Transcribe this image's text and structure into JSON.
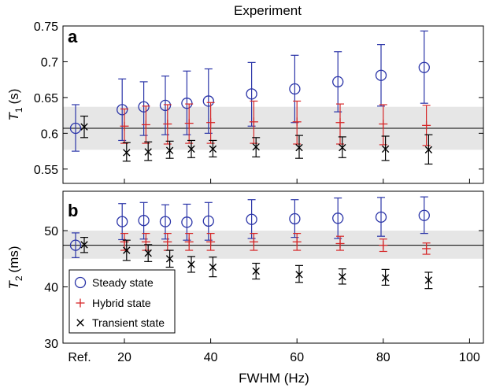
{
  "figure_title": "Experiment",
  "x_axis": {
    "label": "FWHM (Hz)",
    "range": [
      10,
      100
    ],
    "ticks": [
      20,
      40,
      60,
      80,
      100
    ],
    "ref_label": "Ref."
  },
  "legend": {
    "placement": "bottom-left of panel b",
    "entries": [
      {
        "name": "Steady state",
        "marker": "circle",
        "color": "#2b35a8"
      },
      {
        "name": "Hybrid state",
        "marker": "plus",
        "color": "#d62728"
      },
      {
        "name": "Transient state",
        "marker": "x",
        "color": "#000000"
      }
    ]
  },
  "colors": {
    "steady": "#2b35a8",
    "hybrid": "#d62728",
    "transient": "#000000",
    "band": "#e6e6e6"
  },
  "chart_data": [
    {
      "type": "scatter",
      "panel_label": "a",
      "ylabel_symbol": "T",
      "ylabel_sub": "1",
      "ylabel_unit": "(s)",
      "ylim": [
        0.53,
        0.75
      ],
      "yticks": [
        "0.55",
        "0.6",
        "0.65",
        "0.7",
        "0.75"
      ],
      "reference_line": 0.607,
      "band": [
        0.577,
        0.637
      ],
      "ref_points": [
        {
          "series": "Steady state",
          "value": 0.607,
          "low": 0.575,
          "high": 0.64
        },
        {
          "series": "Transient state",
          "value": 0.609,
          "low": 0.594,
          "high": 0.624
        }
      ],
      "x": [
        20,
        25,
        30,
        35,
        40,
        50,
        60,
        70,
        80,
        90
      ],
      "series": [
        {
          "name": "Steady state",
          "x_offset": -1,
          "values": [
            0.633,
            0.637,
            0.639,
            0.642,
            0.645,
            0.655,
            0.662,
            0.672,
            0.681,
            0.692
          ],
          "low": [
            0.59,
            0.597,
            0.598,
            0.598,
            0.6,
            0.61,
            0.615,
            0.63,
            0.638,
            0.642
          ],
          "high": [
            0.676,
            0.672,
            0.68,
            0.687,
            0.69,
            0.699,
            0.709,
            0.714,
            0.724,
            0.743
          ]
        },
        {
          "name": "Hybrid state",
          "x_offset": 0,
          "values": [
            0.61,
            0.612,
            0.613,
            0.614,
            0.615,
            0.616,
            0.616,
            0.615,
            0.613,
            0.611
          ],
          "low": [
            0.586,
            0.586,
            0.585,
            0.586,
            0.586,
            0.586,
            0.585,
            0.585,
            0.584,
            0.583
          ],
          "high": [
            0.634,
            0.638,
            0.64,
            0.641,
            0.643,
            0.645,
            0.645,
            0.641,
            0.64,
            0.639
          ]
        },
        {
          "name": "Transient state",
          "x_offset": 1,
          "values": [
            0.573,
            0.574,
            0.576,
            0.578,
            0.578,
            0.581,
            0.58,
            0.58,
            0.578,
            0.577
          ],
          "low": [
            0.561,
            0.562,
            0.565,
            0.566,
            0.567,
            0.567,
            0.565,
            0.566,
            0.562,
            0.557
          ],
          "high": [
            0.587,
            0.588,
            0.589,
            0.59,
            0.59,
            0.594,
            0.597,
            0.595,
            0.596,
            0.598
          ]
        }
      ]
    },
    {
      "type": "scatter",
      "panel_label": "b",
      "ylabel_symbol": "T",
      "ylabel_sub": "2",
      "ylabel_unit": "(ms)",
      "ylim": [
        30,
        57
      ],
      "yticks": [
        "30",
        "40",
        "50"
      ],
      "reference_line": 47.4,
      "band": [
        45,
        50
      ],
      "ref_points": [
        {
          "series": "Steady state",
          "value": 47.4,
          "low": 45.2,
          "high": 49.6
        },
        {
          "series": "Transient state",
          "value": 47.5,
          "low": 46.1,
          "high": 48.8
        }
      ],
      "x": [
        20,
        25,
        30,
        35,
        40,
        50,
        60,
        70,
        80,
        90
      ],
      "series": [
        {
          "name": "Steady state",
          "x_offset": -1,
          "values": [
            51.6,
            51.8,
            51.6,
            51.5,
            51.7,
            52.0,
            52.1,
            52.2,
            52.4,
            52.7
          ],
          "low": [
            48.4,
            48.5,
            48.5,
            48.3,
            48.3,
            48.6,
            48.8,
            48.6,
            49.0,
            49.5
          ],
          "high": [
            54.8,
            55.0,
            54.6,
            54.7,
            55.0,
            55.5,
            55.5,
            55.8,
            55.9,
            56.0
          ]
        },
        {
          "name": "Hybrid state",
          "x_offset": 0,
          "values": [
            48.0,
            48.0,
            48.0,
            48.0,
            48.0,
            48.0,
            48.0,
            47.7,
            47.4,
            46.8
          ],
          "low": [
            46.5,
            46.5,
            46.5,
            46.5,
            46.5,
            46.5,
            46.5,
            46.5,
            46.3,
            45.8
          ],
          "high": [
            49.5,
            49.5,
            49.5,
            49.5,
            49.5,
            49.5,
            49.5,
            49.0,
            48.5,
            47.8
          ]
        },
        {
          "name": "Transient state",
          "x_offset": 1,
          "values": [
            46.5,
            46.0,
            45.0,
            44.0,
            43.5,
            42.8,
            42.2,
            41.8,
            41.6,
            41.2
          ],
          "low": [
            44.7,
            44.5,
            43.5,
            42.6,
            41.8,
            41.4,
            40.8,
            40.5,
            40.3,
            39.7
          ],
          "high": [
            48.3,
            47.5,
            46.5,
            45.4,
            45.3,
            44.2,
            43.8,
            43.2,
            43.1,
            42.6
          ]
        }
      ]
    }
  ]
}
